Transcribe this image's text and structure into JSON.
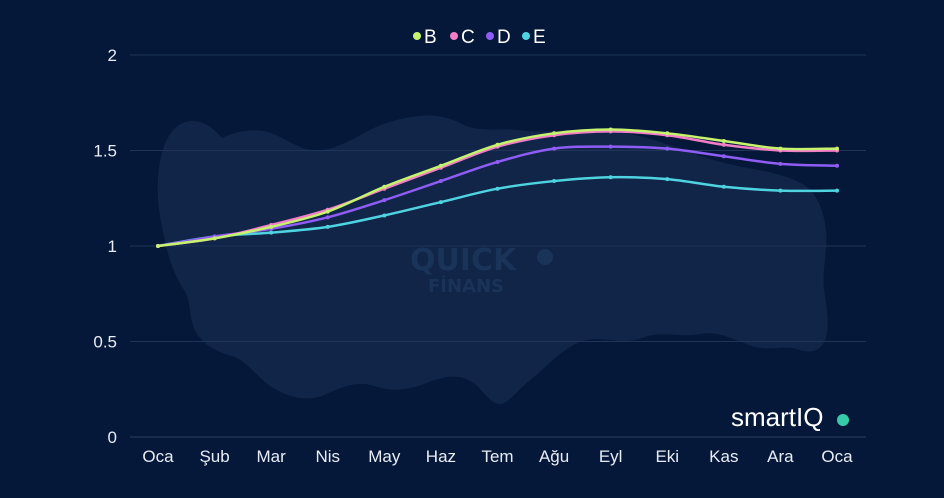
{
  "chart_data": {
    "type": "line",
    "categories": [
      "Oca",
      "Şub",
      "Mar",
      "Nis",
      "May",
      "Haz",
      "Tem",
      "Ağu",
      "Eyl",
      "Eki",
      "Kas",
      "Ara",
      "Oca"
    ],
    "series": [
      {
        "name": "B",
        "color": "#c6f36d",
        "values": [
          1.0,
          1.04,
          1.1,
          1.18,
          1.31,
          1.42,
          1.53,
          1.59,
          1.61,
          1.59,
          1.55,
          1.51,
          1.51
        ]
      },
      {
        "name": "C",
        "color": "#f27ec8",
        "values": [
          1.0,
          1.04,
          1.11,
          1.19,
          1.3,
          1.41,
          1.52,
          1.58,
          1.6,
          1.58,
          1.53,
          1.5,
          1.5
        ]
      },
      {
        "name": "D",
        "color": "#8f5cf5",
        "values": [
          1.0,
          1.05,
          1.09,
          1.15,
          1.24,
          1.34,
          1.44,
          1.51,
          1.52,
          1.51,
          1.47,
          1.43,
          1.42
        ]
      },
      {
        "name": "E",
        "color": "#4fd3e0",
        "values": [
          1.0,
          1.05,
          1.07,
          1.1,
          1.16,
          1.23,
          1.3,
          1.34,
          1.36,
          1.35,
          1.31,
          1.29,
          1.29
        ]
      }
    ],
    "yticks": [
      "0",
      "0.5",
      "1",
      "1.5",
      "2"
    ],
    "ylim": [
      0,
      2
    ],
    "grid": true,
    "legend_position": "top-center"
  },
  "branding": {
    "logo_text": "smartIQ",
    "watermark_line1": "QUICK",
    "watermark_line2": "FİNANS"
  }
}
